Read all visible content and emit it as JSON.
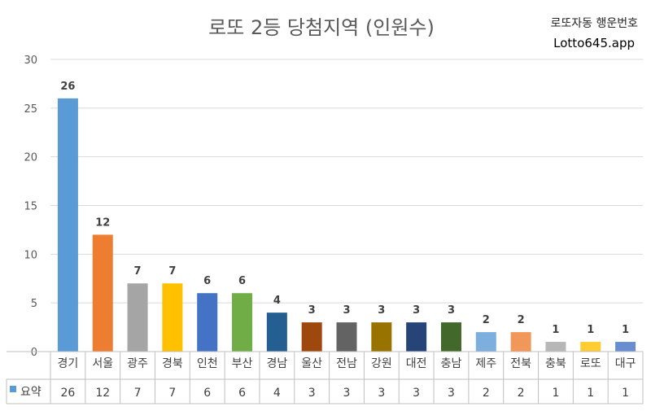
{
  "header": {
    "title": "로또 2등 당첨지역 (인원수)",
    "brand_line1": "로또자동 행운번호",
    "brand_line2": "Lotto645.app"
  },
  "chart_data": {
    "type": "bar",
    "title": "로또 2등 당첨지역 (인원수)",
    "categories": [
      "경기",
      "서울",
      "광주",
      "경북",
      "인천",
      "부산",
      "경남",
      "울산",
      "전남",
      "강원",
      "대전",
      "충남",
      "제주",
      "전북",
      "충북",
      "로또",
      "대구"
    ],
    "series": [
      {
        "name": "요약",
        "values": [
          26,
          12,
          7,
          7,
          6,
          6,
          4,
          3,
          3,
          3,
          3,
          3,
          2,
          2,
          1,
          1,
          1
        ]
      }
    ],
    "colors": [
      "#5B9BD5",
      "#ED7D31",
      "#A5A5A5",
      "#FFC000",
      "#4472C4",
      "#70AD47",
      "#255E91",
      "#9E480E",
      "#636363",
      "#997300",
      "#264478",
      "#43682B",
      "#7CAFDD",
      "#F1975A",
      "#B7B7B7",
      "#FFCD33",
      "#698ED0"
    ],
    "legend_color": "#5B9BD5",
    "ylim": [
      0,
      30
    ],
    "yticks": [
      0,
      5,
      10,
      15,
      20,
      25,
      30
    ],
    "grid": true,
    "data_table": true
  }
}
